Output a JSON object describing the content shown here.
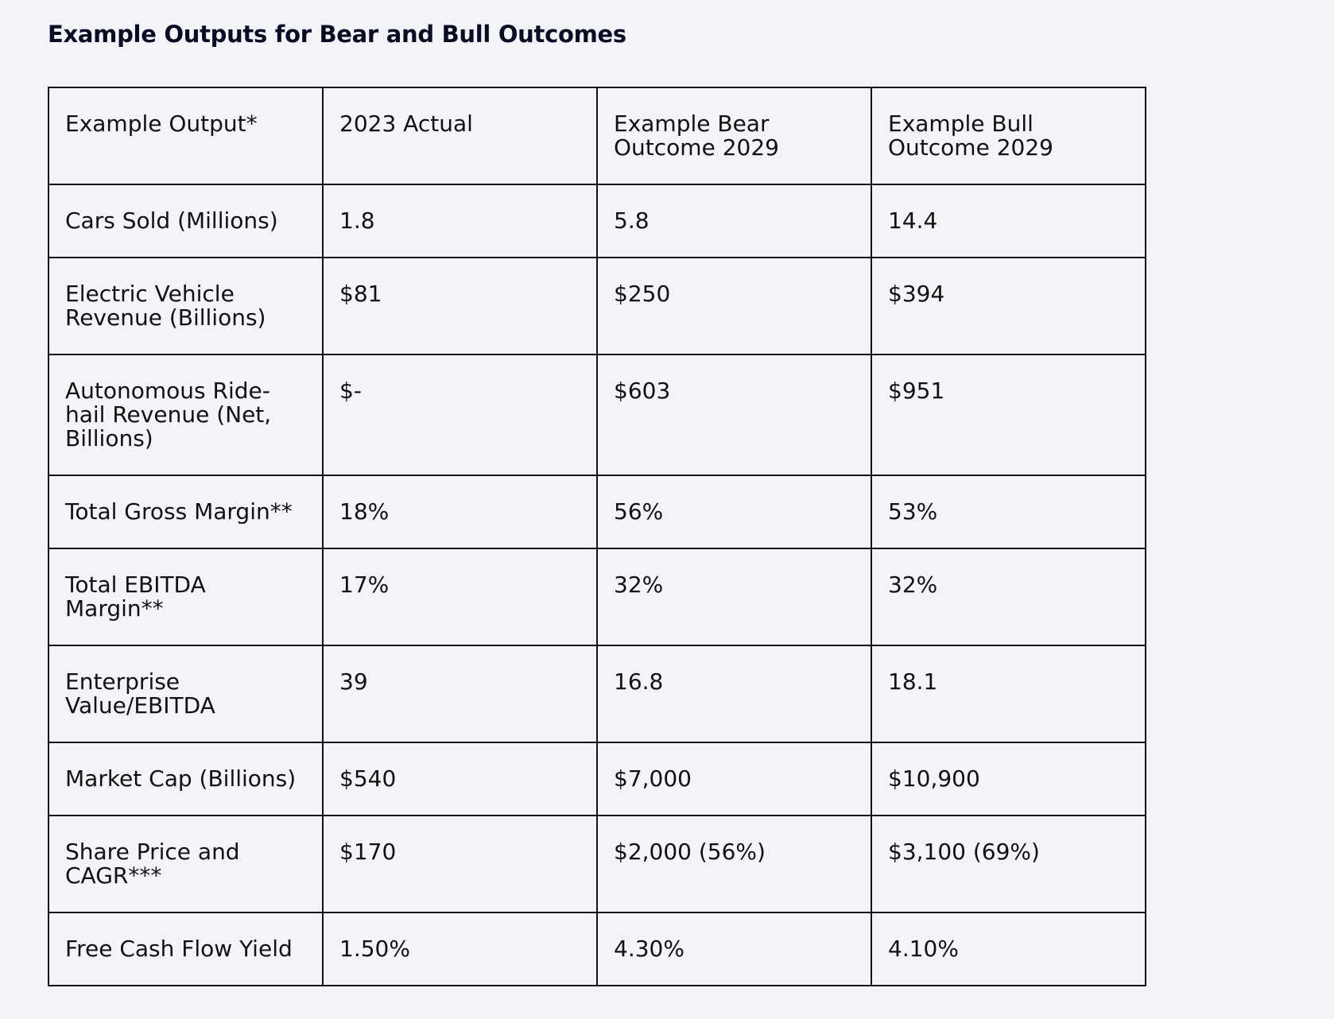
{
  "title": "Example Outputs for Bear and Bull Outcomes",
  "table": {
    "headers": [
      "Example Output*",
      "2023 Actual",
      "Example Bear Outcome 2029",
      "Example Bull Outcome 2029"
    ],
    "rows": [
      {
        "label": "Cars Sold (Millions)",
        "actual_2023": "1.8",
        "bear_2029": "5.8",
        "bull_2029": "14.4"
      },
      {
        "label": "Electric Vehicle Revenue (Billions)",
        "actual_2023": "$81",
        "bear_2029": "$250",
        "bull_2029": "$394"
      },
      {
        "label": "Autonomous Ride-hail Revenue (Net, Billions)",
        "actual_2023": "$-",
        "bear_2029": "$603",
        "bull_2029": "$951"
      },
      {
        "label": "Total Gross Margin**",
        "actual_2023": "18%",
        "bear_2029": "56%",
        "bull_2029": "53%"
      },
      {
        "label": "Total EBITDA Margin**",
        "actual_2023": "17%",
        "bear_2029": "32%",
        "bull_2029": "32%"
      },
      {
        "label": "Enterprise Value/EBITDA",
        "actual_2023": "39",
        "bear_2029": "16.8",
        "bull_2029": "18.1"
      },
      {
        "label": "Market Cap (Billions)",
        "actual_2023": "$540",
        "bear_2029": "$7,000",
        "bull_2029": "$10,900"
      },
      {
        "label": "Share Price and CAGR***",
        "actual_2023": "$170",
        "bear_2029": "$2,000 (56%)",
        "bull_2029": "$3,100 (69%)"
      },
      {
        "label": "Free Cash Flow Yield",
        "actual_2023": "1.50%",
        "bear_2029": "4.30%",
        "bull_2029": "4.10%"
      }
    ]
  }
}
